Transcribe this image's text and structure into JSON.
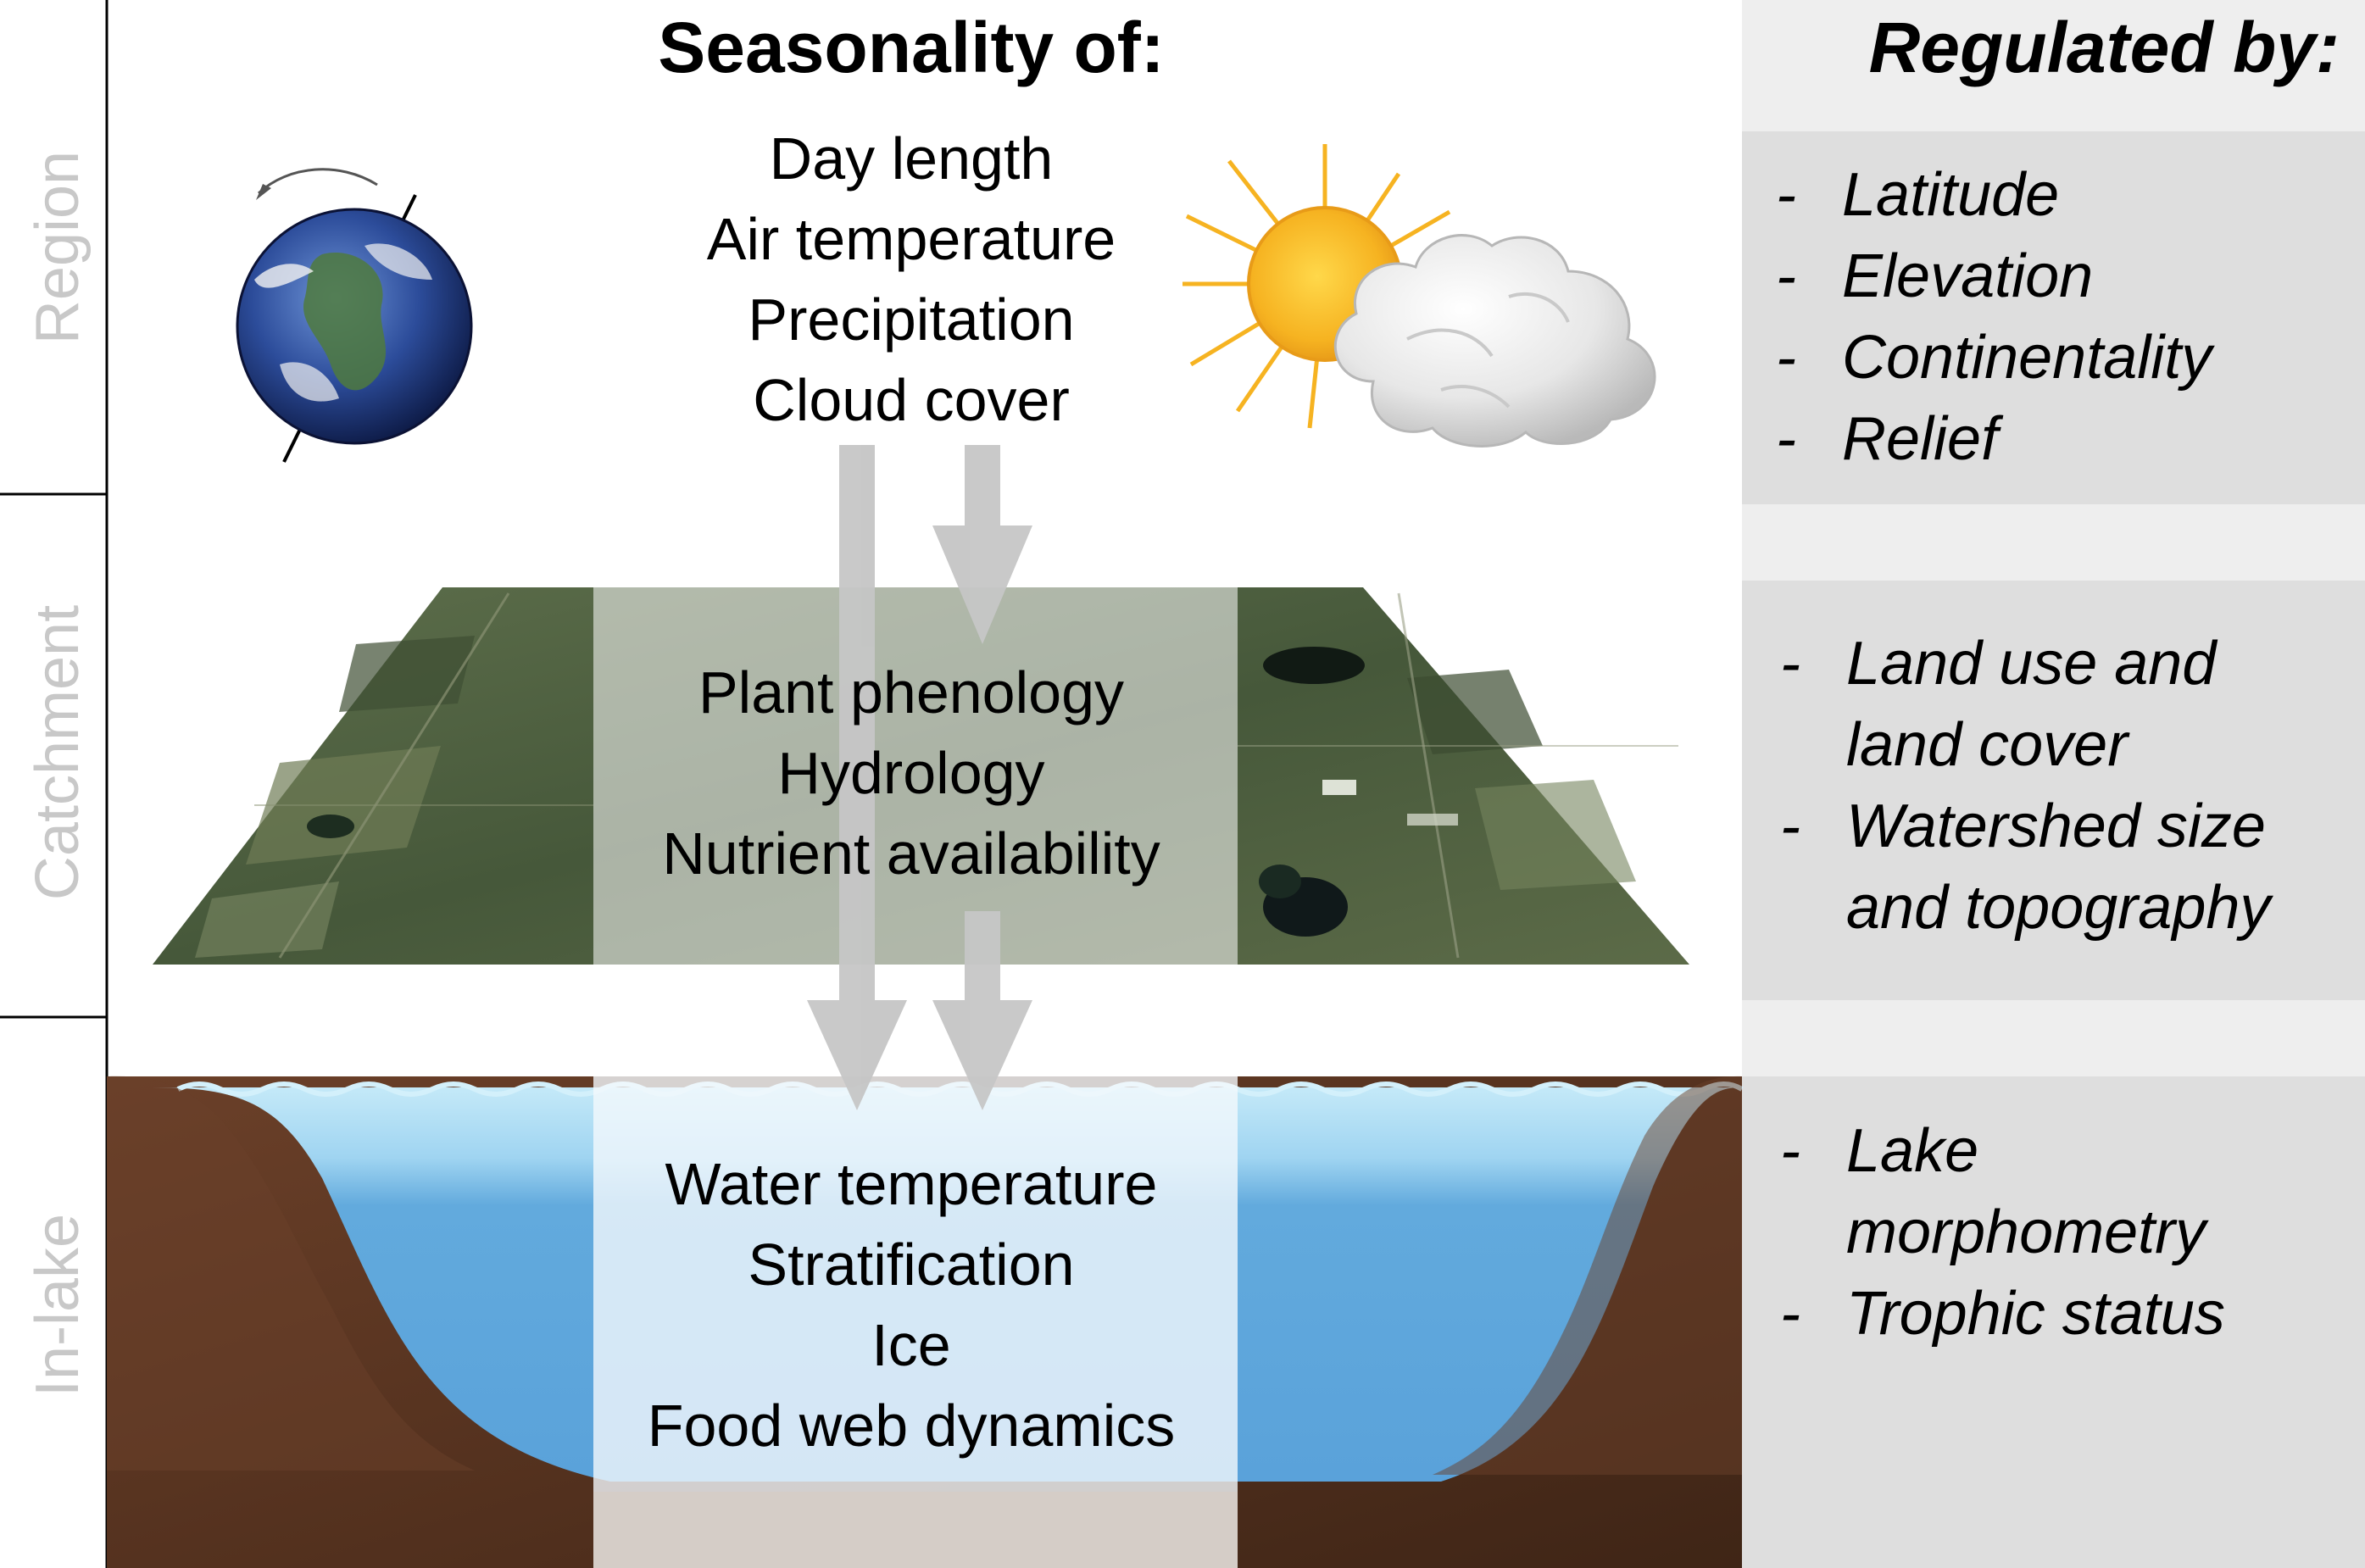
{
  "header": {
    "seasonality_title": "Seasonality of:",
    "regulated_title": "Regulated by:"
  },
  "rows": [
    {
      "label": "Region"
    },
    {
      "label": "Catchment"
    },
    {
      "label": "In-lake"
    }
  ],
  "region": {
    "seasonality": [
      "Day length",
      "Air temperature",
      "Precipitation",
      "Cloud cover"
    ],
    "regulated_by": [
      "Latitude",
      "Elevation",
      "Continentality",
      "Relief"
    ]
  },
  "catchment": {
    "seasonality": [
      "Plant phenology",
      "Hydrology",
      "Nutrient availability"
    ],
    "regulated_by": [
      "Land use and",
      "land cover",
      "Watershed size",
      "and topography"
    ]
  },
  "inlake": {
    "seasonality": [
      "Water temperature",
      "Stratification",
      "Ice",
      "Food web dynamics"
    ],
    "regulated_by": [
      "Lake",
      "morphometry",
      "Trophic status"
    ]
  },
  "icons": [
    "earth-globe-icon",
    "rotation-arrow-icon",
    "sun-icon",
    "cloud-icon",
    "downward-arrow-icon"
  ],
  "colors": {
    "panel_gray": "#dedede",
    "header_gray": "#eeeeee",
    "side_label": "#c8c8c8",
    "water": "#62aadd",
    "soil": "#5a3624",
    "arrow": "#c6c6c6"
  }
}
